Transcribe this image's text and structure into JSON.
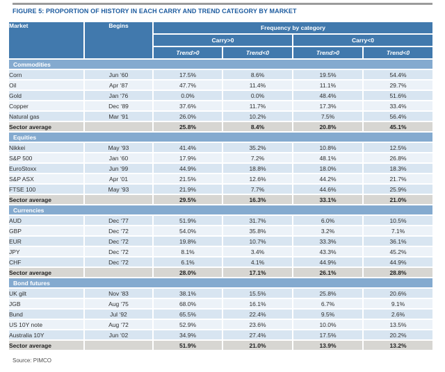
{
  "figure": {
    "title": "FIGURE 5: PROPORTION OF HISTORY IN EACH CARRY AND TREND CATEGORY BY MARKET",
    "source": "Source: PIMCO"
  },
  "colors": {
    "title_blue": "#1b5a9e",
    "header_blue": "#4179ad",
    "section_blue": "#84aacf",
    "row_light_blue": "#d8e5f1",
    "row_pale_blue": "#ecf2f8",
    "average_gray": "#d7d6d2",
    "top_rule_gray": "#9b9b9b"
  },
  "table": {
    "headers": {
      "market": "Market",
      "begins": "Begins",
      "frequency": "Frequency by category",
      "carry_pos": "Carry>0",
      "carry_neg": "Carry<0",
      "trend_pos": "Trend>0",
      "trend_neg": "Trend<0"
    },
    "average_label": "Sector average",
    "sections": [
      {
        "name": "Commodities",
        "rows": [
          {
            "market": "Corn",
            "begins": "Jun ‘60",
            "values": [
              "17.5%",
              "8.6%",
              "19.5%",
              "54.4%"
            ]
          },
          {
            "market": "Oil",
            "begins": "Apr ‘87",
            "values": [
              "47.7%",
              "11.4%",
              "11.1%",
              "29.7%"
            ]
          },
          {
            "market": "Gold",
            "begins": "Jan ‘76",
            "values": [
              "0.0%",
              "0.0%",
              "48.4%",
              "51.6%"
            ]
          },
          {
            "market": "Copper",
            "begins": "Dec ‘89",
            "values": [
              "37.6%",
              "11.7%",
              "17.3%",
              "33.4%"
            ]
          },
          {
            "market": "Natural gas",
            "begins": "Mar ‘91",
            "values": [
              "26.0%",
              "10.2%",
              "7.5%",
              "56.4%"
            ]
          }
        ],
        "average": [
          "25.8%",
          "8.4%",
          "20.8%",
          "45.1%"
        ]
      },
      {
        "name": "Equities",
        "rows": [
          {
            "market": "Nikkei",
            "begins": "May ‘93",
            "values": [
              "41.4%",
              "35.2%",
              "10.8%",
              "12.5%"
            ]
          },
          {
            "market": "S&P 500",
            "begins": "Jan ‘60",
            "values": [
              "17.9%",
              "7.2%",
              "48.1%",
              "26.8%"
            ]
          },
          {
            "market": "EuroStoxx",
            "begins": "Jun ‘99",
            "values": [
              "44.9%",
              "18.8%",
              "18.0%",
              "18.3%"
            ]
          },
          {
            "market": "S&P ASX",
            "begins": "Apr ‘01",
            "values": [
              "21.5%",
              "12.6%",
              "44.2%",
              "21.7%"
            ]
          },
          {
            "market": "FTSE 100",
            "begins": "May ‘93",
            "values": [
              "21.9%",
              "7.7%",
              "44.6%",
              "25.9%"
            ]
          }
        ],
        "average": [
          "29.5%",
          "16.3%",
          "33.1%",
          "21.0%"
        ]
      },
      {
        "name": "Currencies",
        "rows": [
          {
            "market": "AUD",
            "begins": "Dec ‘77",
            "values": [
              "51.9%",
              "31.7%",
              "6.0%",
              "10.5%"
            ]
          },
          {
            "market": "GBP",
            "begins": "Dec ‘72",
            "values": [
              "54.0%",
              "35.8%",
              "3.2%",
              "7.1%"
            ]
          },
          {
            "market": "EUR",
            "begins": "Dec ‘72",
            "values": [
              "19.8%",
              "10.7%",
              "33.3%",
              "36.1%"
            ]
          },
          {
            "market": "JPY",
            "begins": "Dec ‘72",
            "values": [
              "8.1%",
              "3.4%",
              "43.3%",
              "45.2%"
            ]
          },
          {
            "market": "CHF",
            "begins": "Dec ‘72",
            "values": [
              "6.1%",
              "4.1%",
              "44.9%",
              "44.9%"
            ]
          }
        ],
        "average": [
          "28.0%",
          "17.1%",
          "26.1%",
          "28.8%"
        ]
      },
      {
        "name": "Bond futures",
        "rows": [
          {
            "market": "UK gilt",
            "begins": "Nov ‘83",
            "values": [
              "38.1%",
              "15.5%",
              "25.8%",
              "20.6%"
            ]
          },
          {
            "market": "JGB",
            "begins": "Aug ‘75",
            "values": [
              "68.0%",
              "16.1%",
              "6.7%",
              "9.1%"
            ]
          },
          {
            "market": "Bund",
            "begins": "Jul ‘92",
            "values": [
              "65.5%",
              "22.4%",
              "9.5%",
              "2.6%"
            ]
          },
          {
            "market": "US 10Y note",
            "begins": "Aug ‘72",
            "values": [
              "52.9%",
              "23.6%",
              "10.0%",
              "13.5%"
            ]
          },
          {
            "market": "Australia 10Y",
            "begins": "Jun ‘02",
            "values": [
              "34.9%",
              "27.4%",
              "17.5%",
              "20.2%"
            ]
          }
        ],
        "average": [
          "51.9%",
          "21.0%",
          "13.9%",
          "13.2%"
        ]
      }
    ]
  }
}
